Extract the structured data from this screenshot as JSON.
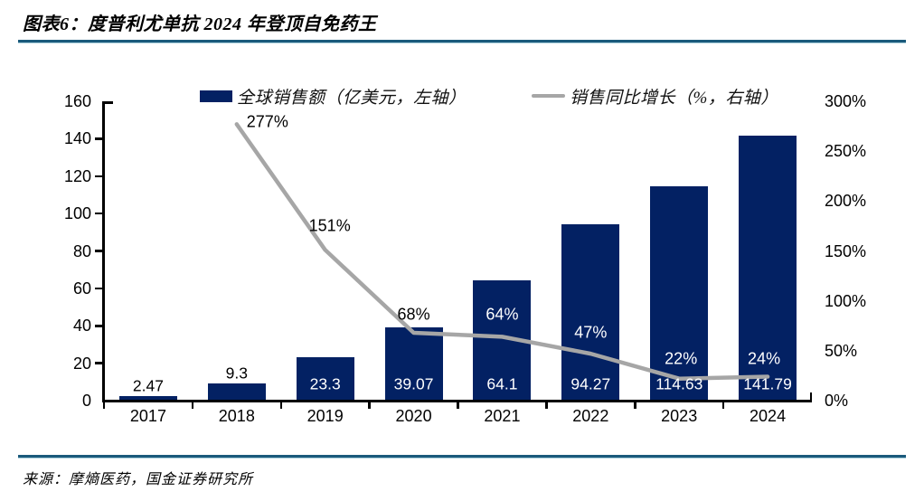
{
  "figure": {
    "title": "图表6：度普利尤单抗 2024 年登顶自免药王",
    "source": "来源：摩熵医药，国金证券研究所"
  },
  "colors": {
    "bar": "#032163",
    "line": "#a6a6a6",
    "axis": "#000000",
    "rule_dark": "#1b5a7c",
    "rule_light": "#a7cdda",
    "label_on_bar": "#ffffff",
    "label_dark": "#000000"
  },
  "chart_data": {
    "type": "bar+line combo",
    "title": "度普利尤单抗 2024 年登顶自免药王",
    "categories": [
      "2017",
      "2018",
      "2019",
      "2020",
      "2021",
      "2022",
      "2023",
      "2024"
    ],
    "series": [
      {
        "name": "全球销售额（亿美元，左轴）",
        "type": "bar",
        "axis": "left",
        "values": [
          2.47,
          9.3,
          23.3,
          39.07,
          64.1,
          94.27,
          114.63,
          141.79
        ],
        "labels": [
          "2.47",
          "9.3",
          "23.3",
          "39.07",
          "64.1",
          "94.27",
          "114.63",
          "141.79"
        ],
        "label_placement": [
          "above",
          "above",
          "inside",
          "inside",
          "inside",
          "inside",
          "inside",
          "inside"
        ]
      },
      {
        "name": "销售同比增长（%，右轴）",
        "type": "line",
        "axis": "right",
        "values": [
          null,
          277,
          151,
          68,
          64,
          47,
          22,
          24
        ],
        "labels": [
          null,
          "277%",
          "151%",
          "68%",
          "64%",
          "47%",
          "22%",
          "24%"
        ],
        "label_color": [
          null,
          "dark",
          "dark",
          "dark",
          "light",
          "light",
          "light",
          "light"
        ],
        "label_offsets": [
          null,
          [
            34,
            -2
          ],
          [
            5,
            -26
          ],
          [
            0,
            -20
          ],
          [
            0,
            -24
          ],
          [
            0,
            -23
          ],
          [
            2,
            -22
          ],
          [
            -4,
            -20
          ]
        ]
      }
    ],
    "left_axis": {
      "min": 0,
      "max": 160,
      "step": 20,
      "ticks": [
        "0",
        "20",
        "40",
        "60",
        "80",
        "100",
        "120",
        "140",
        "160"
      ]
    },
    "right_axis": {
      "min": 0,
      "max": 300,
      "step": 50,
      "ticks": [
        "0%",
        "50%",
        "100%",
        "150%",
        "200%",
        "250%",
        "300%"
      ]
    },
    "grid": false,
    "legend_position": "top"
  }
}
